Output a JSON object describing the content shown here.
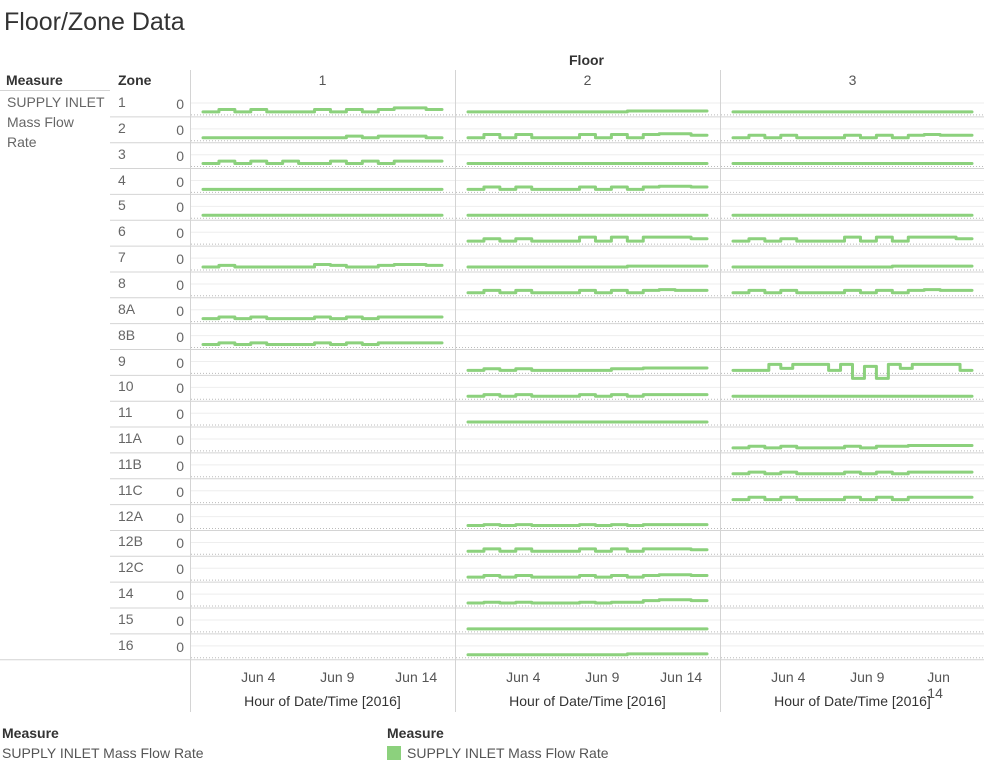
{
  "title": "Floor/Zone Data",
  "legend": {
    "left_title": "Measure",
    "left_item": "SUPPLY INLET Mass Flow Rate",
    "right_title": "Measure",
    "right_item": "SUPPLY INLET Mass Flow Rate",
    "color": "#8CD17D"
  },
  "chart_data": {
    "type": "line",
    "title": "Floor/Zone Data",
    "column_header": "Floor",
    "row_headers": [
      "Measure",
      "Zone"
    ],
    "measure": "SUPPLY INLET Mass Flow Rate",
    "measure_lines": [
      "SUPPLY INLET",
      "Mass Flow",
      "Rate"
    ],
    "floors": [
      "1",
      "2",
      "3"
    ],
    "zones": [
      "1",
      "2",
      "3",
      "4",
      "5",
      "6",
      "7",
      "8",
      "8A",
      "8B",
      "9",
      "10",
      "11",
      "11A",
      "11B",
      "11C",
      "12A",
      "12B",
      "12C",
      "14",
      "15",
      "16"
    ],
    "y_tick": "0",
    "xlabel": "Hour of Date/Time [2016]",
    "x_ticks": [
      "Jun 4",
      "Jun 9",
      "Jun 14"
    ],
    "x_tick_days": [
      4,
      9,
      14
    ],
    "x_range_days": [
      0.5,
      15
    ],
    "y_range": [
      0,
      1
    ],
    "color": "#8CD17D",
    "series": [
      {
        "floor": "1",
        "zone": "1",
        "values": [
          0.5,
          0.56,
          0.5,
          0.56,
          0.5,
          0.5,
          0.5,
          0.56,
          0.5,
          0.56,
          0.5,
          0.56,
          0.6,
          0.6,
          0.56
        ]
      },
      {
        "floor": "1",
        "zone": "2",
        "values": [
          0.5,
          0.5,
          0.5,
          0.5,
          0.5,
          0.5,
          0.5,
          0.5,
          0.5,
          0.54,
          0.5,
          0.54,
          0.54,
          0.54,
          0.5
        ]
      },
      {
        "floor": "1",
        "zone": "3",
        "values": [
          0.5,
          0.56,
          0.5,
          0.56,
          0.5,
          0.56,
          0.5,
          0.5,
          0.56,
          0.5,
          0.56,
          0.5,
          0.56,
          0.56,
          0.56
        ]
      },
      {
        "floor": "1",
        "zone": "4",
        "values": [
          0.5,
          0.5,
          0.5,
          0.5,
          0.5,
          0.5,
          0.5,
          0.5,
          0.5,
          0.5,
          0.5,
          0.5,
          0.5,
          0.5,
          0.5
        ]
      },
      {
        "floor": "1",
        "zone": "5",
        "values": [
          0.5,
          0.5,
          0.5,
          0.5,
          0.5,
          0.5,
          0.5,
          0.5,
          0.5,
          0.5,
          0.5,
          0.5,
          0.5,
          0.5,
          0.5
        ]
      },
      {
        "floor": "1",
        "zone": "7",
        "values": [
          0.5,
          0.54,
          0.5,
          0.5,
          0.5,
          0.5,
          0.5,
          0.56,
          0.54,
          0.5,
          0.5,
          0.54,
          0.56,
          0.56,
          0.54
        ]
      },
      {
        "floor": "1",
        "zone": "8A",
        "values": [
          0.5,
          0.54,
          0.5,
          0.54,
          0.5,
          0.5,
          0.5,
          0.54,
          0.5,
          0.54,
          0.5,
          0.54,
          0.54,
          0.54,
          0.54
        ]
      },
      {
        "floor": "1",
        "zone": "8B",
        "values": [
          0.5,
          0.54,
          0.5,
          0.54,
          0.5,
          0.5,
          0.5,
          0.54,
          0.5,
          0.54,
          0.5,
          0.54,
          0.54,
          0.54,
          0.54
        ]
      },
      {
        "floor": "2",
        "zone": "1",
        "values": [
          0.5,
          0.5,
          0.5,
          0.5,
          0.5,
          0.5,
          0.5,
          0.5,
          0.5,
          0.5,
          0.52,
          0.52,
          0.52,
          0.52,
          0.52
        ]
      },
      {
        "floor": "2",
        "zone": "2",
        "values": [
          0.5,
          0.58,
          0.5,
          0.58,
          0.5,
          0.5,
          0.5,
          0.58,
          0.5,
          0.58,
          0.5,
          0.58,
          0.6,
          0.6,
          0.56
        ]
      },
      {
        "floor": "2",
        "zone": "3",
        "values": [
          0.5,
          0.5,
          0.5,
          0.5,
          0.5,
          0.5,
          0.5,
          0.5,
          0.5,
          0.5,
          0.5,
          0.5,
          0.5,
          0.5,
          0.5
        ]
      },
      {
        "floor": "2",
        "zone": "4",
        "values": [
          0.5,
          0.56,
          0.5,
          0.56,
          0.5,
          0.5,
          0.5,
          0.56,
          0.5,
          0.56,
          0.5,
          0.56,
          0.58,
          0.58,
          0.56
        ]
      },
      {
        "floor": "2",
        "zone": "5",
        "values": [
          0.5,
          0.5,
          0.5,
          0.5,
          0.5,
          0.5,
          0.5,
          0.5,
          0.5,
          0.5,
          0.5,
          0.5,
          0.5,
          0.5,
          0.5
        ]
      },
      {
        "floor": "2",
        "zone": "6",
        "values": [
          0.5,
          0.56,
          0.5,
          0.56,
          0.5,
          0.5,
          0.5,
          0.6,
          0.5,
          0.6,
          0.5,
          0.6,
          0.6,
          0.6,
          0.56
        ]
      },
      {
        "floor": "2",
        "zone": "7",
        "values": [
          0.5,
          0.5,
          0.5,
          0.5,
          0.5,
          0.5,
          0.5,
          0.5,
          0.5,
          0.5,
          0.52,
          0.52,
          0.52,
          0.52,
          0.52
        ]
      },
      {
        "floor": "2",
        "zone": "8",
        "values": [
          0.5,
          0.56,
          0.5,
          0.56,
          0.5,
          0.5,
          0.5,
          0.56,
          0.5,
          0.56,
          0.5,
          0.56,
          0.58,
          0.56,
          0.56
        ]
      },
      {
        "floor": "2",
        "zone": "9",
        "values": [
          0.5,
          0.54,
          0.5,
          0.54,
          0.5,
          0.5,
          0.5,
          0.5,
          0.5,
          0.54,
          0.54,
          0.56,
          0.56,
          0.56,
          0.56
        ]
      },
      {
        "floor": "2",
        "zone": "10",
        "values": [
          0.5,
          0.54,
          0.5,
          0.54,
          0.5,
          0.5,
          0.5,
          0.54,
          0.5,
          0.54,
          0.5,
          0.54,
          0.54,
          0.54,
          0.54
        ]
      },
      {
        "floor": "2",
        "zone": "11",
        "values": [
          0.5,
          0.5,
          0.5,
          0.5,
          0.5,
          0.5,
          0.5,
          0.5,
          0.5,
          0.5,
          0.5,
          0.5,
          0.5,
          0.5,
          0.5
        ]
      },
      {
        "floor": "2",
        "zone": "12A",
        "values": [
          0.5,
          0.52,
          0.5,
          0.52,
          0.5,
          0.5,
          0.5,
          0.52,
          0.5,
          0.52,
          0.5,
          0.52,
          0.52,
          0.52,
          0.52
        ]
      },
      {
        "floor": "2",
        "zone": "12B",
        "values": [
          0.5,
          0.56,
          0.5,
          0.56,
          0.5,
          0.5,
          0.5,
          0.56,
          0.5,
          0.56,
          0.5,
          0.56,
          0.56,
          0.56,
          0.54
        ]
      },
      {
        "floor": "2",
        "zone": "12C",
        "values": [
          0.5,
          0.54,
          0.5,
          0.54,
          0.5,
          0.5,
          0.5,
          0.54,
          0.5,
          0.54,
          0.5,
          0.54,
          0.56,
          0.56,
          0.54
        ]
      },
      {
        "floor": "2",
        "zone": "14",
        "values": [
          0.5,
          0.52,
          0.5,
          0.52,
          0.5,
          0.5,
          0.5,
          0.52,
          0.5,
          0.52,
          0.52,
          0.56,
          0.58,
          0.58,
          0.56
        ]
      },
      {
        "floor": "2",
        "zone": "15",
        "values": [
          0.5,
          0.5,
          0.5,
          0.5,
          0.5,
          0.5,
          0.5,
          0.5,
          0.5,
          0.5,
          0.5,
          0.5,
          0.5,
          0.5,
          0.5
        ]
      },
      {
        "floor": "2",
        "zone": "16",
        "values": [
          0.5,
          0.5,
          0.5,
          0.5,
          0.5,
          0.5,
          0.5,
          0.5,
          0.5,
          0.5,
          0.52,
          0.52,
          0.52,
          0.52,
          0.52
        ]
      },
      {
        "floor": "3",
        "zone": "1",
        "values": [
          0.5,
          0.5,
          0.5,
          0.5,
          0.5,
          0.5,
          0.5,
          0.5,
          0.5,
          0.5,
          0.5,
          0.5,
          0.5,
          0.5,
          0.5
        ]
      },
      {
        "floor": "3",
        "zone": "2",
        "values": [
          0.5,
          0.56,
          0.5,
          0.56,
          0.5,
          0.5,
          0.5,
          0.56,
          0.5,
          0.56,
          0.5,
          0.56,
          0.58,
          0.56,
          0.56
        ]
      },
      {
        "floor": "3",
        "zone": "3",
        "values": [
          0.5,
          0.5,
          0.5,
          0.5,
          0.5,
          0.5,
          0.5,
          0.5,
          0.5,
          0.5,
          0.5,
          0.5,
          0.5,
          0.5,
          0.5
        ]
      },
      {
        "floor": "3",
        "zone": "5",
        "values": [
          0.5,
          0.5,
          0.5,
          0.5,
          0.5,
          0.5,
          0.5,
          0.5,
          0.5,
          0.5,
          0.5,
          0.5,
          0.5,
          0.5,
          0.5
        ]
      },
      {
        "floor": "3",
        "zone": "6",
        "values": [
          0.5,
          0.56,
          0.5,
          0.56,
          0.5,
          0.5,
          0.5,
          0.6,
          0.5,
          0.6,
          0.5,
          0.6,
          0.6,
          0.6,
          0.56
        ]
      },
      {
        "floor": "3",
        "zone": "7",
        "values": [
          0.5,
          0.5,
          0.5,
          0.5,
          0.5,
          0.5,
          0.5,
          0.5,
          0.5,
          0.5,
          0.52,
          0.52,
          0.52,
          0.52,
          0.52
        ]
      },
      {
        "floor": "3",
        "zone": "8",
        "values": [
          0.5,
          0.56,
          0.5,
          0.56,
          0.5,
          0.5,
          0.5,
          0.56,
          0.5,
          0.56,
          0.5,
          0.56,
          0.58,
          0.56,
          0.56
        ]
      },
      {
        "floor": "3",
        "zone": "9",
        "values": [
          0.5,
          0.5,
          0.5,
          0.65,
          0.55,
          0.65,
          0.65,
          0.65,
          0.5,
          0.65,
          0.3,
          0.6,
          0.3,
          0.65,
          0.55,
          0.65,
          0.65,
          0.65,
          0.65,
          0.5
        ]
      },
      {
        "floor": "3",
        "zone": "10",
        "values": [
          0.5,
          0.5,
          0.5,
          0.5,
          0.5,
          0.5,
          0.5,
          0.5,
          0.5,
          0.5,
          0.5,
          0.5,
          0.5,
          0.5,
          0.5
        ]
      },
      {
        "floor": "3",
        "zone": "11A",
        "values": [
          0.5,
          0.54,
          0.5,
          0.54,
          0.5,
          0.5,
          0.5,
          0.54,
          0.5,
          0.54,
          0.54,
          0.56,
          0.56,
          0.56,
          0.56
        ]
      },
      {
        "floor": "3",
        "zone": "11B",
        "values": [
          0.5,
          0.54,
          0.5,
          0.54,
          0.5,
          0.5,
          0.5,
          0.54,
          0.5,
          0.54,
          0.5,
          0.54,
          0.54,
          0.54,
          0.54
        ]
      },
      {
        "floor": "3",
        "zone": "11C",
        "values": [
          0.5,
          0.56,
          0.5,
          0.56,
          0.5,
          0.5,
          0.5,
          0.56,
          0.5,
          0.56,
          0.5,
          0.56,
          0.56,
          0.56,
          0.56
        ]
      }
    ]
  }
}
